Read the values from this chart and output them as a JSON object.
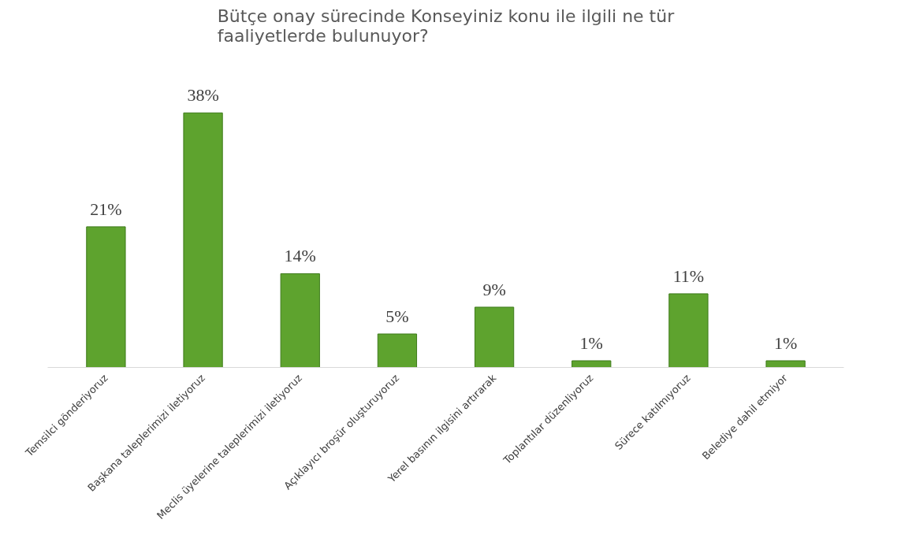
{
  "chart_data": {
    "type": "bar",
    "title": "Bütçe onay sürecinde Konseyiniz konu ile ilgili ne tür faaliyetlerde bulunuyor?",
    "categories": [
      "Temsilci gönderiyoruz",
      "Başkana taleplerimizi iletiyoruz",
      "Meclis üyelerine taleplerimizi iletiyoruz",
      "Açıklayıcı broşür oluşturuyoruz",
      "Yerel basının ilgisini artırarak",
      "Toplantılar düzenliyoruz",
      "Sürece katılmıyoruz",
      "Belediye dahil etmiyor"
    ],
    "values": [
      21,
      38,
      14,
      5,
      9,
      1,
      11,
      1
    ],
    "value_labels": [
      "21%",
      "38%",
      "14%",
      "5%",
      "9%",
      "1%",
      "11%",
      "1%"
    ],
    "color": "#5ea32e"
  }
}
